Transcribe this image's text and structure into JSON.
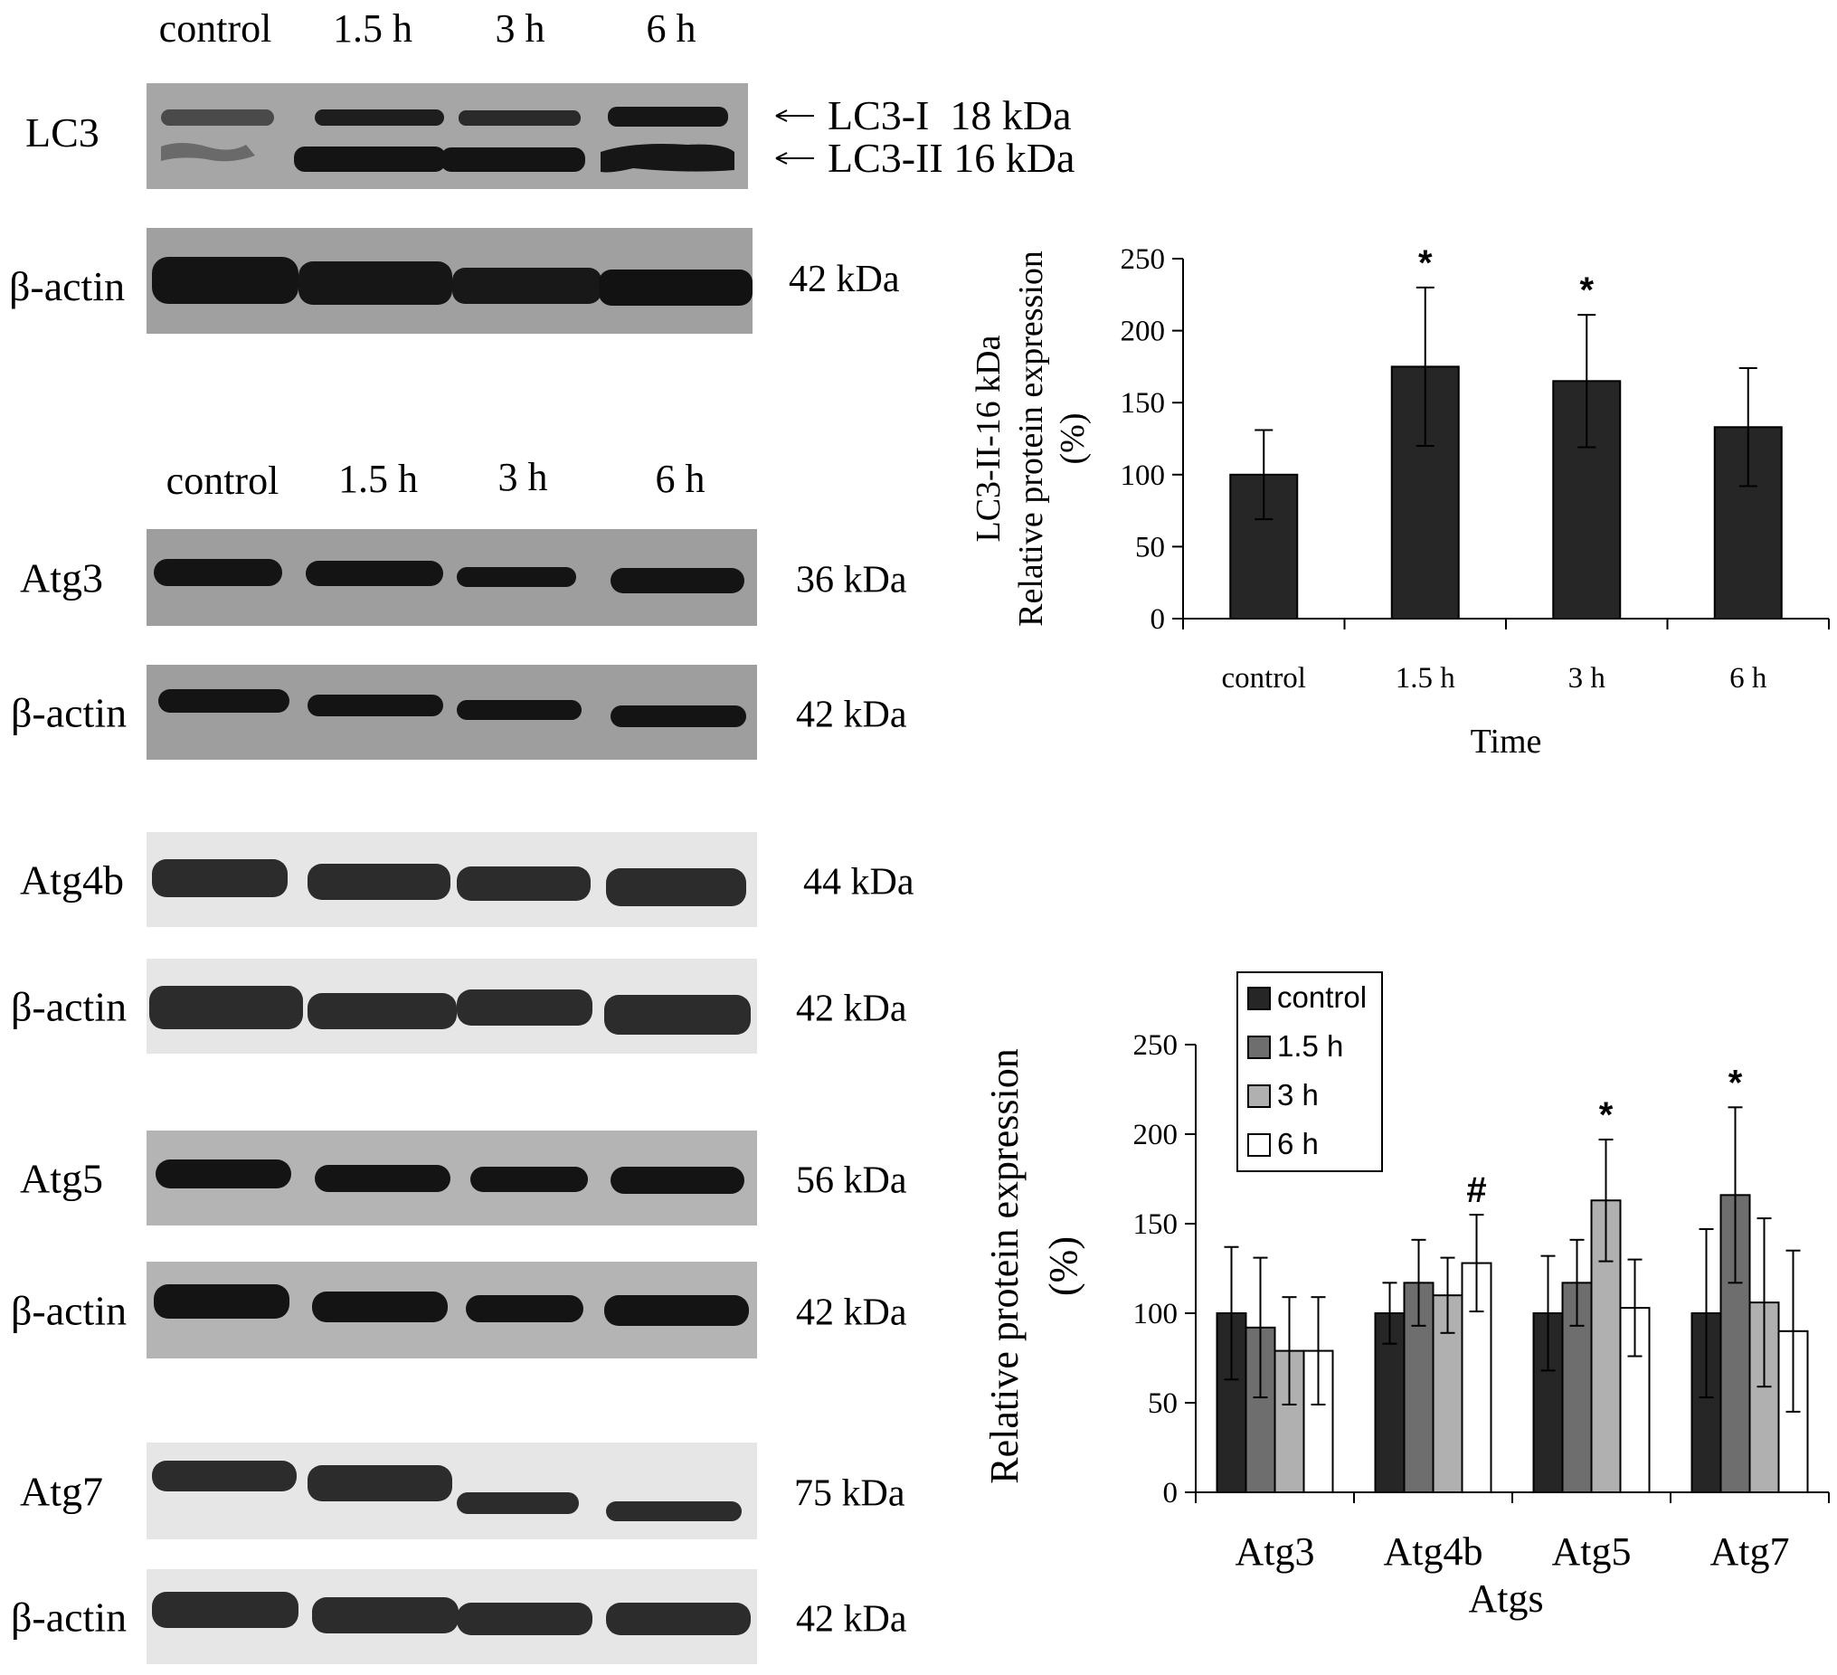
{
  "colors": {
    "blot_dark_bg": "#a6a6a6",
    "blot_light_bg": "#e9e9e9",
    "band": "#1a1a1a",
    "bar_control": "#262626",
    "bar_1_5h": "#6e6e6e",
    "bar_3h": "#b0b0b0",
    "bar_6h": "#ffffff"
  },
  "blots": {
    "panel1": {
      "lanes": [
        "control",
        "1.5 h",
        "3 h",
        "6 h"
      ],
      "rows": [
        {
          "label": "LC3",
          "bands": [
            "LC3-I  18 kDa",
            "LC3-II 16 kDa"
          ]
        },
        {
          "label": "β-actin",
          "kda": "42 kDa"
        }
      ]
    },
    "panel2": {
      "lanes": [
        "control",
        "1.5 h",
        "3 h",
        "6 h"
      ],
      "rows": [
        {
          "label": "Atg3",
          "kda": "36 kDa"
        },
        {
          "label": "β-actin",
          "kda": "42 kDa"
        },
        {
          "label": "Atg4b",
          "kda": "44 kDa"
        },
        {
          "label": "β-actin",
          "kda": "42 kDa"
        },
        {
          "label": "Atg5",
          "kda": "56 kDa"
        },
        {
          "label": "β-actin",
          "kda": "42 kDa"
        },
        {
          "label": "Atg7",
          "kda": "75 kDa"
        },
        {
          "label": "β-actin",
          "kda": "42 kDa"
        }
      ]
    }
  },
  "chart_data": [
    {
      "type": "bar",
      "categories": [
        "control",
        "1.5 h",
        "3 h",
        "6 h"
      ],
      "values": [
        100,
        175,
        165,
        133
      ],
      "errors": [
        31,
        55,
        46,
        41
      ],
      "significance": [
        "",
        "*",
        "*",
        ""
      ],
      "ylim": [
        0,
        250
      ],
      "yticks": [
        "0",
        "50",
        "100",
        "150",
        "200",
        "250"
      ],
      "xlabel": "Time",
      "ylabel": [
        "LC3-II-16 kDa",
        "Relative protein expression",
        "(%)"
      ]
    },
    {
      "type": "bar",
      "categories": [
        "Atg3",
        "Atg4b",
        "Atg5",
        "Atg7"
      ],
      "series": [
        {
          "name": "control",
          "values": [
            100,
            100,
            100,
            100
          ],
          "errors": [
            37,
            17,
            32,
            47
          ]
        },
        {
          "name": "1.5 h",
          "values": [
            92,
            117,
            117,
            166
          ],
          "errors": [
            39,
            24,
            24,
            49
          ]
        },
        {
          "name": "3 h",
          "values": [
            79,
            110,
            163,
            106
          ],
          "errors": [
            30,
            21,
            34,
            47
          ]
        },
        {
          "name": "6 h",
          "values": [
            79,
            128,
            103,
            90
          ],
          "errors": [
            30,
            27,
            27,
            45
          ]
        }
      ],
      "significance": [
        {
          "category": "Atg4b",
          "series": "6 h",
          "mark": "#"
        },
        {
          "category": "Atg5",
          "series": "3 h",
          "mark": "*"
        },
        {
          "category": "Atg7",
          "series": "1.5 h",
          "mark": "*"
        }
      ],
      "ylim": [
        0,
        250
      ],
      "yticks": [
        "0",
        "50",
        "100",
        "150",
        "200",
        "250"
      ],
      "xlabel": "Atgs",
      "ylabel": [
        "Relative protein expression",
        "(%)"
      ],
      "legend": "top-left"
    }
  ]
}
